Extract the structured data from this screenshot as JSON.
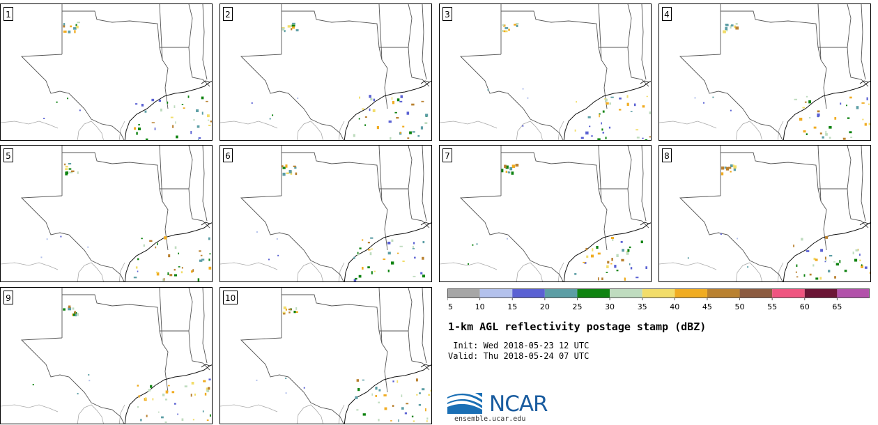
{
  "panels": [
    {
      "label": "1"
    },
    {
      "label": "2"
    },
    {
      "label": "3"
    },
    {
      "label": "4"
    },
    {
      "label": "5"
    },
    {
      "label": "6"
    },
    {
      "label": "7"
    },
    {
      "label": "8"
    },
    {
      "label": "9"
    },
    {
      "label": "10"
    }
  ],
  "colorbar": {
    "ticks": [
      "5",
      "10",
      "15",
      "20",
      "25",
      "30",
      "35",
      "40",
      "45",
      "50",
      "55",
      "60",
      "65"
    ],
    "colors": [
      "#a6a6a6",
      "#b3c1ec",
      "#5a61d3",
      "#5c9ea5",
      "#0f8311",
      "#bfdcbf",
      "#f2dd6a",
      "#f0ac22",
      "#b98130",
      "#8c5b40",
      "#ef5580",
      "#6b1636",
      "#b251aa"
    ]
  },
  "title": "1-km AGL reflectivity postage stamp (dBZ)",
  "init_text": " Init: Wed 2018-05-23 12 UTC",
  "valid_text": "Valid: Thu 2018-05-24 07 UTC",
  "logo": {
    "name": "NCAR",
    "url": "ensemble.ucar.edu"
  }
}
